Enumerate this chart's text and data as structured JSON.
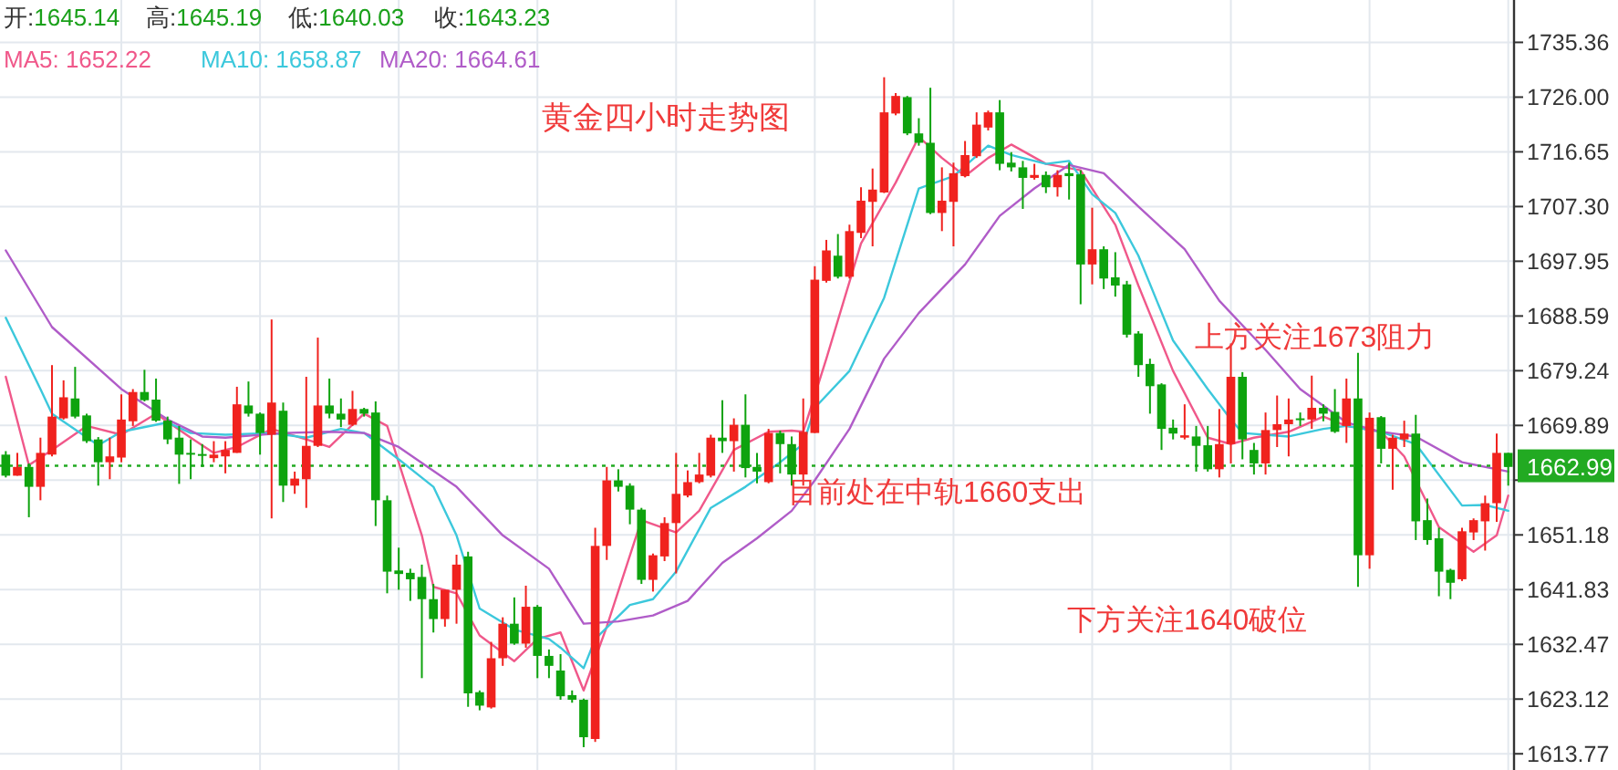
{
  "chart_data": {
    "type": "candlestick",
    "title": "黄金四小时走势图",
    "categories": [
      null,
      null,
      null,
      null,
      null,
      null,
      null,
      null,
      null,
      null,
      null,
      null,
      null,
      null,
      null,
      null,
      null,
      null,
      null,
      null,
      null,
      null,
      null,
      null,
      null,
      null,
      null,
      null,
      null,
      null,
      null,
      null,
      null,
      null,
      null,
      null,
      null,
      null,
      null,
      null,
      null,
      null,
      null,
      null,
      null,
      null,
      null,
      null,
      null,
      null,
      null,
      null,
      null,
      null,
      null,
      null,
      null,
      null,
      null,
      null,
      null,
      null,
      null,
      null,
      null,
      null,
      null,
      null,
      null,
      null,
      null,
      null,
      null,
      null,
      null,
      null,
      null,
      null,
      null,
      null,
      null,
      null,
      null,
      null,
      null,
      null,
      null,
      null,
      null,
      null,
      null,
      null,
      null,
      null,
      null,
      null,
      null,
      null,
      null,
      null,
      null,
      null,
      null,
      null,
      null,
      null,
      null,
      null,
      null,
      null,
      null,
      null,
      null,
      null,
      null,
      null,
      null,
      null,
      null,
      null,
      null,
      null,
      null,
      null,
      null,
      null,
      null,
      null,
      null,
      null,
      null
    ],
    "ohlc": [
      [
        1664.9,
        1665.5,
        1661.0,
        1661.3
      ],
      [
        1661.3,
        1665.2,
        1661.3,
        1662.8
      ],
      [
        1662.8,
        1663.4,
        1654.2,
        1659.4
      ],
      [
        1659.4,
        1667.8,
        1657.1,
        1665.2
      ],
      [
        1664.9,
        1680.2,
        1664.6,
        1671.4
      ],
      [
        1671.1,
        1677.6,
        1670.9,
        1674.7
      ],
      [
        1674.5,
        1679.9,
        1671.1,
        1671.4
      ],
      [
        1671.6,
        1671.9,
        1666.9,
        1667.2
      ],
      [
        1667.5,
        1667.9,
        1659.6,
        1663.6
      ],
      [
        1663.6,
        1667.8,
        1660.7,
        1664.6
      ],
      [
        1664.4,
        1675.2,
        1663.6,
        1670.9
      ],
      [
        1670.6,
        1676.1,
        1669.8,
        1675.6
      ],
      [
        1675.6,
        1679.4,
        1674.0,
        1674.2
      ],
      [
        1674.3,
        1677.9,
        1670.5,
        1670.7
      ],
      [
        1670.7,
        1671.4,
        1666.7,
        1667.5
      ],
      [
        1667.8,
        1669.8,
        1659.9,
        1664.9
      ],
      [
        1665.2,
        1667.5,
        1660.7,
        1664.9
      ],
      [
        1665.0,
        1666.7,
        1662.8,
        1664.7
      ],
      [
        1664.3,
        1667.2,
        1663.6,
        1664.9
      ],
      [
        1664.6,
        1667.2,
        1661.7,
        1665.7
      ],
      [
        1665.2,
        1676.5,
        1665.2,
        1673.5
      ],
      [
        1673.3,
        1677.4,
        1671.4,
        1671.9
      ],
      [
        1671.9,
        1672.1,
        1664.9,
        1668.6
      ],
      [
        1668.3,
        1688.0,
        1654.0,
        1673.8
      ],
      [
        1672.4,
        1673.8,
        1656.8,
        1659.6
      ],
      [
        1659.6,
        1662.0,
        1658.2,
        1660.8
      ],
      [
        1660.7,
        1678.2,
        1655.8,
        1666.4
      ],
      [
        1666.4,
        1684.9,
        1666.2,
        1673.3
      ],
      [
        1673.3,
        1677.9,
        1671.1,
        1671.9
      ],
      [
        1671.9,
        1674.5,
        1669.6,
        1670.9
      ],
      [
        1670.0,
        1675.8,
        1669.8,
        1672.7
      ],
      [
        1672.7,
        1672.9,
        1671.4,
        1671.9
      ],
      [
        1672.1,
        1674.0,
        1652.7,
        1657.1
      ],
      [
        1657.1,
        1657.9,
        1641.2,
        1644.9
      ],
      [
        1645.1,
        1649.0,
        1641.8,
        1644.5
      ],
      [
        1644.7,
        1645.4,
        1639.9,
        1643.6
      ],
      [
        1644.0,
        1646.1,
        1626.7,
        1640.2
      ],
      [
        1640.2,
        1642.8,
        1634.5,
        1636.8
      ],
      [
        1636.8,
        1641.8,
        1635.5,
        1641.8
      ],
      [
        1641.8,
        1647.8,
        1636.0,
        1646.1
      ],
      [
        1647.5,
        1648.3,
        1621.8,
        1624.1
      ],
      [
        1624.3,
        1624.6,
        1621.2,
        1622.0
      ],
      [
        1621.7,
        1632.9,
        1621.5,
        1630.1
      ],
      [
        1630.1,
        1637.1,
        1628.8,
        1636.0
      ],
      [
        1636.0,
        1640.5,
        1632.4,
        1632.6
      ],
      [
        1632.6,
        1642.5,
        1631.9,
        1638.9
      ],
      [
        1638.9,
        1639.2,
        1626.7,
        1630.5
      ],
      [
        1630.5,
        1631.6,
        1626.7,
        1628.8
      ],
      [
        1628.0,
        1630.8,
        1623.0,
        1623.6
      ],
      [
        1623.8,
        1624.6,
        1622.5,
        1623.0
      ],
      [
        1623.0,
        1623.2,
        1614.9,
        1616.6
      ],
      [
        1616.3,
        1652.4,
        1615.8,
        1649.3
      ],
      [
        1649.3,
        1662.8,
        1646.9,
        1660.5
      ],
      [
        1660.5,
        1662.4,
        1658.6,
        1659.4
      ],
      [
        1659.6,
        1660.0,
        1653.0,
        1655.5
      ],
      [
        1655.5,
        1655.8,
        1642.8,
        1643.5
      ],
      [
        1643.5,
        1648.0,
        1641.5,
        1647.7
      ],
      [
        1647.5,
        1654.2,
        1646.7,
        1653.2
      ],
      [
        1653.2,
        1665.2,
        1644.6,
        1658.2
      ],
      [
        1657.9,
        1662.2,
        1657.6,
        1660.2
      ],
      [
        1660.2,
        1665.2,
        1660.0,
        1661.5
      ],
      [
        1661.3,
        1668.3,
        1661.0,
        1667.8
      ],
      [
        1667.8,
        1674.2,
        1665.2,
        1667.2
      ],
      [
        1667.2,
        1671.1,
        1662.0,
        1670.0
      ],
      [
        1670.0,
        1675.2,
        1661.0,
        1662.6
      ],
      [
        1662.8,
        1665.2,
        1660.0,
        1662.0
      ],
      [
        1660.2,
        1669.3,
        1660.0,
        1668.6
      ],
      [
        1668.6,
        1669.0,
        1661.7,
        1666.7
      ],
      [
        1666.7,
        1668.0,
        1659.6,
        1661.5
      ],
      [
        1661.5,
        1674.5,
        1659.6,
        1668.8
      ],
      [
        1668.6,
        1697.1,
        1668.6,
        1694.8
      ],
      [
        1694.6,
        1701.6,
        1694.3,
        1699.8
      ],
      [
        1698.9,
        1702.6,
        1695.0,
        1695.3
      ],
      [
        1695.3,
        1704.2,
        1695.0,
        1703.1
      ],
      [
        1702.8,
        1710.6,
        1701.9,
        1708.3
      ],
      [
        1708.1,
        1713.8,
        1700.5,
        1710.2
      ],
      [
        1709.7,
        1729.4,
        1709.6,
        1723.4
      ],
      [
        1723.2,
        1726.7,
        1722.9,
        1726.2
      ],
      [
        1726.0,
        1726.2,
        1719.5,
        1719.8
      ],
      [
        1719.8,
        1722.4,
        1717.7,
        1718.2
      ],
      [
        1718.2,
        1727.6,
        1706.0,
        1706.2
      ],
      [
        1706.2,
        1714.0,
        1703.1,
        1708.3
      ],
      [
        1708.1,
        1714.8,
        1700.5,
        1713.0
      ],
      [
        1712.5,
        1718.5,
        1712.3,
        1716.1
      ],
      [
        1715.9,
        1723.4,
        1715.6,
        1721.3
      ],
      [
        1720.8,
        1723.7,
        1720.3,
        1723.4
      ],
      [
        1723.4,
        1725.5,
        1713.5,
        1714.6
      ],
      [
        1714.8,
        1716.6,
        1713.3,
        1714.0
      ],
      [
        1714.0,
        1715.1,
        1706.9,
        1712.2
      ],
      [
        1712.2,
        1714.6,
        1711.9,
        1712.7
      ],
      [
        1712.7,
        1713.3,
        1709.6,
        1710.6
      ],
      [
        1710.6,
        1713.5,
        1709.0,
        1712.7
      ],
      [
        1713.0,
        1714.8,
        1708.5,
        1712.5
      ],
      [
        1712.8,
        1713.5,
        1690.6,
        1697.4
      ],
      [
        1697.4,
        1707.1,
        1694.0,
        1700.0
      ],
      [
        1700.0,
        1700.5,
        1693.2,
        1695.0
      ],
      [
        1695.2,
        1699.5,
        1691.9,
        1693.8
      ],
      [
        1694.0,
        1694.6,
        1684.9,
        1685.4
      ],
      [
        1685.6,
        1686.0,
        1678.2,
        1680.2
      ],
      [
        1680.4,
        1681.3,
        1671.9,
        1676.6
      ],
      [
        1676.9,
        1677.1,
        1665.7,
        1669.3
      ],
      [
        1669.5,
        1670.9,
        1667.5,
        1668.5
      ],
      [
        1667.8,
        1673.5,
        1667.5,
        1668.2
      ],
      [
        1668.0,
        1669.8,
        1662.0,
        1666.4
      ],
      [
        1666.5,
        1669.8,
        1662.0,
        1662.4
      ],
      [
        1662.4,
        1672.7,
        1661.0,
        1666.7
      ],
      [
        1666.7,
        1683.9,
        1663.4,
        1678.2
      ],
      [
        1678.2,
        1679.0,
        1664.1,
        1667.5
      ],
      [
        1665.7,
        1666.9,
        1661.5,
        1663.4
      ],
      [
        1663.4,
        1672.1,
        1661.5,
        1669.1
      ],
      [
        1669.1,
        1675.0,
        1666.2,
        1670.1
      ],
      [
        1670.1,
        1674.5,
        1664.6,
        1670.9
      ],
      [
        1671.1,
        1672.1,
        1669.8,
        1670.9
      ],
      [
        1670.9,
        1678.4,
        1669.3,
        1672.9
      ],
      [
        1672.9,
        1673.5,
        1670.6,
        1671.9
      ],
      [
        1672.2,
        1676.1,
        1668.6,
        1668.8
      ],
      [
        1669.8,
        1677.9,
        1666.9,
        1674.5
      ],
      [
        1674.5,
        1682.3,
        1642.3,
        1647.7
      ],
      [
        1647.7,
        1672.1,
        1645.4,
        1671.2
      ],
      [
        1671.3,
        1671.5,
        1663.4,
        1665.9
      ],
      [
        1665.9,
        1668.3,
        1658.9,
        1667.8
      ],
      [
        1667.5,
        1670.7,
        1666.2,
        1668.5
      ],
      [
        1668.5,
        1671.7,
        1650.3,
        1653.5
      ],
      [
        1653.7,
        1657.4,
        1649.5,
        1650.3
      ],
      [
        1650.6,
        1652.4,
        1640.7,
        1644.9
      ],
      [
        1645.2,
        1645.4,
        1640.2,
        1643.0
      ],
      [
        1643.6,
        1652.4,
        1643.3,
        1651.8
      ],
      [
        1651.6,
        1654.0,
        1650.3,
        1653.7
      ],
      [
        1653.5,
        1657.9,
        1648.5,
        1656.6
      ],
      [
        1656.6,
        1668.5,
        1653.4,
        1665.2
      ],
      [
        1665.2,
        1665.2,
        1659.6,
        1662.8
      ]
    ],
    "series": [
      {
        "type": "line",
        "color": "#f0588a",
        "values": [
          1678.2,
          null,
          1663.1,
          null,
          1665.7,
          null,
          null,
          1669.8,
          null,
          null,
          1668.3,
          null,
          null,
          1671.9,
          null,
          null,
          1667.8,
          null,
          1665.2,
          null,
          1666.2,
          null,
          null,
          1669.3,
          null,
          null,
          1667.5,
          null,
          1666.2,
          null,
          null,
          1671.9,
          null,
          1669.8,
          null,
          null,
          1651.1,
          1642.3,
          null,
          1641.2,
          null,
          1634.0,
          null,
          null,
          1629.6,
          null,
          1633.4,
          null,
          1634.5,
          null,
          1624.6,
          null,
          1635.5,
          null,
          null,
          1653.7,
          null,
          null,
          1651.6,
          null,
          1655.3,
          null,
          null,
          1665.7,
          null,
          null,
          1668.8,
          null,
          1669.0,
          1668.8,
          null,
          1681.3,
          null,
          null,
          1701.0,
          null,
          null,
          1711.4,
          null,
          1719.2,
          null,
          1715.6,
          null,
          1712.5,
          null,
          1715.6,
          null,
          1717.9,
          null,
          null,
          1714.6,
          null,
          null,
          1713.5,
          1710.4,
          null,
          1704.2,
          null,
          1693.8,
          null,
          null,
          1679.2,
          null,
          null,
          1667.8,
          null,
          1666.7,
          null,
          1667.8,
          null,
          null,
          1668.8,
          null,
          null,
          1671.4,
          null,
          1669.8,
          null,
          null,
          1668.8,
          null,
          1664.6,
          null,
          null,
          1652.5,
          null,
          null,
          1648.3,
          null,
          1651.1,
          1657.9
        ]
      },
      {
        "type": "line",
        "color": "#3cc8dc",
        "values": [
          1688.3,
          null,
          null,
          1676.1,
          1671.9,
          null,
          null,
          null,
          1666.5,
          null,
          1668.8,
          null,
          null,
          null,
          1670.4,
          null,
          1668.6,
          null,
          null,
          1668.3,
          null,
          null,
          null,
          1668.6,
          null,
          null,
          1667.8,
          null,
          null,
          1669.3,
          null,
          1668.6,
          null,
          null,
          1664.1,
          null,
          null,
          1659.4,
          null,
          1651.1,
          null,
          1638.6,
          null,
          null,
          1635.0,
          null,
          null,
          1633.4,
          1631.9,
          null,
          1628.4,
          1633.4,
          null,
          null,
          1639.2,
          null,
          1640.2,
          null,
          1644.9,
          null,
          null,
          1655.8,
          null,
          null,
          1659.4,
          null,
          null,
          1663.6,
          null,
          1666.7,
          1672.9,
          null,
          null,
          1679.2,
          null,
          null,
          1691.7,
          null,
          null,
          1710.4,
          null,
          null,
          1712.5,
          null,
          null,
          1717.7,
          null,
          1716.1,
          null,
          null,
          1714.6,
          null,
          1715.1,
          null,
          1709.4,
          null,
          1706.2,
          null,
          1698.9,
          null,
          null,
          1684.4,
          null,
          null,
          1676.1,
          null,
          1670.9,
          1668.6,
          null,
          null,
          null,
          1668.0,
          null,
          null,
          1669.3,
          null,
          1669.8,
          null,
          null,
          1668.8,
          null,
          null,
          1666.7,
          null,
          null,
          null,
          1656.2,
          null,
          1656.3,
          null,
          1655.3
        ]
      },
      {
        "type": "line",
        "color": "#b05cc8",
        "values": [
          1699.8,
          null,
          null,
          null,
          1686.7,
          null,
          null,
          null,
          null,
          null,
          1676.1,
          null,
          null,
          null,
          1670.9,
          null,
          null,
          1668.0,
          null,
          1667.8,
          null,
          null,
          null,
          null,
          1668.6,
          null,
          null,
          null,
          1668.8,
          null,
          null,
          1668.6,
          null,
          null,
          1666.2,
          null,
          null,
          null,
          null,
          1659.4,
          null,
          null,
          null,
          1651.1,
          null,
          null,
          null,
          1645.4,
          null,
          null,
          1636.0,
          null,
          null,
          1636.4,
          null,
          null,
          1637.4,
          null,
          null,
          1639.9,
          null,
          null,
          1646.4,
          null,
          null,
          1650.6,
          null,
          null,
          1655.3,
          null,
          1660.5,
          null,
          null,
          1669.3,
          null,
          null,
          1681.3,
          null,
          null,
          1689.1,
          null,
          null,
          null,
          1697.4,
          null,
          null,
          1705.7,
          null,
          null,
          1710.4,
          null,
          null,
          1714.4,
          null,
          null,
          1713.0,
          null,
          null,
          1707.3,
          null,
          null,
          null,
          1700.0,
          null,
          null,
          1691.2,
          null,
          null,
          null,
          1682.8,
          null,
          null,
          1676.1,
          null,
          null,
          null,
          1670.4,
          null,
          null,
          1668.8,
          null,
          null,
          1668.0,
          null,
          null,
          null,
          1663.6,
          null,
          null,
          null,
          1662.0
        ]
      }
    ],
    "ylim": [
      1611.0,
      1742.6
    ],
    "yticks": [
      1735.36,
      {
        "value": 1726,
        "label": "1726.00"
      },
      1716.65,
      {
        "value": 1707.3,
        "label": "1707.30"
      },
      1697.95,
      1688.59,
      1679.24,
      1669.89,
      {
        "value": 1660.54,
        "label": null
      },
      1651.18,
      1641.83,
      1632.47,
      1623.12,
      1613.77
    ],
    "ref_lines": [
      {
        "axis": "y",
        "value": 1662.99,
        "label": "1662.99",
        "color": "#22aa22",
        "line_style": "dotted"
      }
    ],
    "grid": true,
    "annotations": [
      "开:1645.14",
      "高:1645.19",
      "低:1640.03",
      "收:1643.23",
      "MA5: 1652.22",
      "MA10: 1658.87",
      "MA20: 1664.61",
      "上方关注1673阻力",
      "目前处在中轨1660支出",
      "下方关注1640破位"
    ]
  }
}
